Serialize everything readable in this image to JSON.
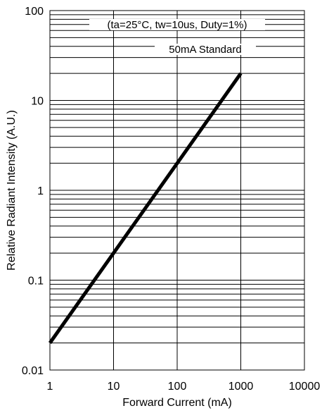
{
  "chart_data": {
    "type": "line",
    "xlabel": "Forward Current (mA)",
    "ylabel": "Relative Radiant Intensity (A.U.)",
    "x_scale": "log",
    "y_scale": "log",
    "xlim": [
      1,
      10000
    ],
    "ylim": [
      0.01,
      100
    ],
    "x_ticks": [
      "1",
      "10",
      "100",
      "1000",
      "10000"
    ],
    "y_ticks": [
      "0.01",
      "0.1",
      "1",
      "10",
      "100"
    ],
    "grid": true,
    "annotations": [
      "(ta=25°C, tw=10us, Duty=1%)",
      "50mA Standard"
    ],
    "series": [
      {
        "x": [
          1,
          1000
        ],
        "y": [
          0.02,
          20
        ],
        "color": "#000000"
      }
    ]
  }
}
